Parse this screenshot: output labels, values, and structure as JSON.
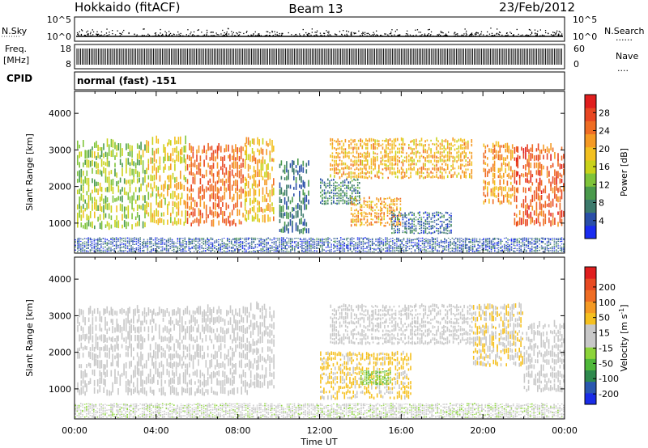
{
  "header": {
    "station": "Hokkaido (fitACF)",
    "beam": "Beam 13",
    "date": "23/Feb/2012"
  },
  "noise_panel": {
    "left_label": "N.Sky",
    "right_label": "N.Search",
    "right_dots": "......",
    "left_ticks": [
      "10^5",
      "10^0"
    ],
    "right_ticks": [
      "10^5",
      "10^0"
    ]
  },
  "freq_panel": {
    "left_label_1": "Freq.",
    "left_label_2": "[MHz]",
    "right_label": "Nave",
    "right_dots": "....",
    "left_ticks": [
      "18",
      "8"
    ],
    "right_ticks": [
      "60",
      "0"
    ]
  },
  "cpid": {
    "label": "CPID",
    "value": "normal (fast) -151"
  },
  "x_axis": {
    "label": "Time UT",
    "ticks": [
      "00:00",
      "04:00",
      "08:00",
      "12:00",
      "16:00",
      "20:00",
      "00:00"
    ]
  },
  "chart_data": [
    {
      "type": "heatmap",
      "name": "power",
      "ylabel": "Slant Range [km]",
      "yticks": [
        1000,
        2000,
        3000,
        4000
      ],
      "ylim": [
        180,
        4600
      ],
      "xlim": [
        0,
        24
      ],
      "x_unit": "hours UT",
      "colorbar": {
        "label": "Power [dB]",
        "ticks": [
          4,
          8,
          12,
          16,
          20,
          24,
          28
        ],
        "range": [
          0,
          32
        ],
        "colors": [
          "#1a2cf0",
          "#2a4fa8",
          "#3c7a6c",
          "#4a9a4c",
          "#7fc43a",
          "#c9d21a",
          "#f2c020",
          "#f59a24",
          "#ef6d24",
          "#e84622",
          "#e01e1e"
        ]
      },
      "regions": [
        {
          "t0": 0.1,
          "t1": 3.5,
          "r0": 800,
          "r1": 3200,
          "level": 14
        },
        {
          "t0": 3.5,
          "t1": 5.5,
          "r0": 900,
          "r1": 3300,
          "level": 18
        },
        {
          "t0": 5.5,
          "t1": 8.3,
          "r0": 900,
          "r1": 3100,
          "level": 25
        },
        {
          "t0": 8.3,
          "t1": 9.8,
          "r0": 1000,
          "r1": 3300,
          "level": 20
        },
        {
          "t0": 10.0,
          "t1": 11.5,
          "r0": 700,
          "r1": 2700,
          "level": 7
        },
        {
          "t0": 12.0,
          "t1": 14.0,
          "r0": 1500,
          "r1": 2200,
          "level": 8
        },
        {
          "t0": 13.5,
          "t1": 16.0,
          "r0": 900,
          "r1": 1700,
          "level": 21
        },
        {
          "t0": 15.5,
          "t1": 18.5,
          "r0": 700,
          "r1": 1300,
          "level": 6
        },
        {
          "t0": 12.5,
          "t1": 19.5,
          "r0": 2200,
          "r1": 3300,
          "level": 20
        },
        {
          "t0": 20.0,
          "t1": 21.5,
          "r0": 1500,
          "r1": 3200,
          "level": 22
        },
        {
          "t0": 21.5,
          "t1": 24.0,
          "r0": 900,
          "r1": 3100,
          "level": 26
        },
        {
          "t0": 0.0,
          "t1": 24.0,
          "r0": 200,
          "r1": 600,
          "level": 5
        }
      ]
    },
    {
      "type": "heatmap",
      "name": "velocity",
      "ylabel": "Slant Range [km]",
      "yticks": [
        1000,
        2000,
        3000,
        4000
      ],
      "ylim": [
        180,
        4600
      ],
      "xlim": [
        0,
        24
      ],
      "x_unit": "hours UT",
      "colorbar": {
        "label": "Velocity [m s",
        "label_sup": "-1",
        "label_end": "]",
        "ticks": [
          200,
          100,
          50,
          15,
          -15,
          -50,
          -100,
          -200
        ],
        "range": [
          -250,
          250
        ],
        "colors": [
          "#1a2ce8",
          "#2a58b0",
          "#2f8a4e",
          "#4fb83a",
          "#8cd43a",
          "#c8c8c8",
          "#c8c8c8",
          "#f5c020",
          "#f59a24",
          "#ef6d24",
          "#e84a22",
          "#e01e1e"
        ]
      },
      "regions": [
        {
          "t0": 0.1,
          "t1": 8.5,
          "r0": 800,
          "r1": 3200,
          "level": 0
        },
        {
          "t0": 8.5,
          "t1": 9.8,
          "r0": 1000,
          "r1": 3300,
          "level": -20
        },
        {
          "t0": 12.0,
          "t1": 16.5,
          "r0": 700,
          "r1": 2000,
          "level": 50
        },
        {
          "t0": 14.0,
          "t1": 15.5,
          "r0": 1100,
          "r1": 1500,
          "level": -80
        },
        {
          "t0": 12.5,
          "t1": 19.5,
          "r0": 2200,
          "r1": 3300,
          "level": 0
        },
        {
          "t0": 19.5,
          "t1": 22.0,
          "r0": 1600,
          "r1": 3300,
          "level": 40
        },
        {
          "t0": 22.0,
          "t1": 24.0,
          "r0": 900,
          "r1": 2800,
          "level": 0
        },
        {
          "t0": 0.0,
          "t1": 24.0,
          "r0": 200,
          "r1": 600,
          "level": -30
        }
      ]
    }
  ]
}
